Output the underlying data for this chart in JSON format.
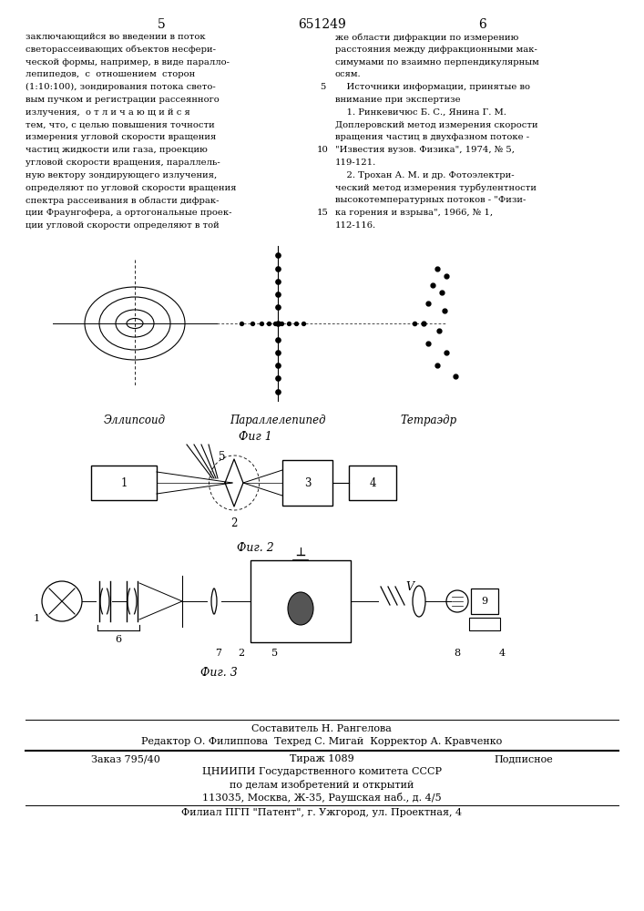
{
  "bg_color": "#ffffff",
  "page_num_left": "5",
  "page_num_center": "651249",
  "page_num_right": "6",
  "left_col_text": [
    "заключающийся во введении в поток",
    "светорассеивающих объектов несфери-",
    "ческой формы, например, в виде паралло-",
    "лепипедов,  с  отношением  сторон",
    "(1:10:100), зондирования потока свето-",
    "вым пучком и регистрации рассеянного",
    "излучения,  о т л и ч а ю щ и й с я",
    "тем, что, с целью повышения точности",
    "измерения угловой скорости вращения",
    "частиц жидкости или газа, проекцию",
    "угловой скорости вращения, параллель-",
    "ную вектору зондирующего излучения,",
    "определяют по угловой скорости вращения",
    "спектра рассеивания в области дифрак-",
    "ции Фраунгофера, а ортогональные проек-",
    "ции угловой скорости определяют в той"
  ],
  "right_col_text": [
    "же области дифракции по измерению",
    "расстояния между дифракционными мак-",
    "симумами по взаимно перпендикулярным",
    "осям.",
    "    Источники информации, принятые во",
    "внимание при экспертизе",
    "    1. Ринкевичюс Б. С., Янина Г. М.",
    "Доплеровский метод измерения скорости",
    "вращения частиц в двухфазном потоке -",
    "\"Известия вузов. Физика\", 1974, № 5,",
    "119-121.",
    "    2. Трохан А. М. и др. Фотоэлектри-",
    "ческий метод измерения турбулентности",
    "высокотемпературных потоков - \"Физи-",
    "ка горения и взрыва\", 1966, № 1,",
    "112-116."
  ],
  "ellipsoid_label": "Эллипсоид",
  "parallelepiped_label": "Параллелепипед",
  "tetrahedron_label": "Тетраэдр",
  "fig1_label": "Фиг 1",
  "fig2_label": "Фиг. 2",
  "fig3_label": "Фиг. 3",
  "footer_line1": "Составитель Н. Рангелова",
  "footer_line2": "Редактор О. Филиппова  Техред С. Мигай  Корректор А. Кравченко",
  "footer_line3_left": "Заказ 795/40",
  "footer_line3_mid": "Тираж 1089",
  "footer_line3_right": "Подписное",
  "footer_line4": "ЦНИИПИ Государственного комитета СССР",
  "footer_line5": "по делам изобретений и открытий",
  "footer_line6": "113035, Москва, Ж-35, Раушская наб., д. 4/5",
  "footer_line7": "Филиал ПГП \"Патент\", г. Ужгород, ул. Проектная, 4"
}
